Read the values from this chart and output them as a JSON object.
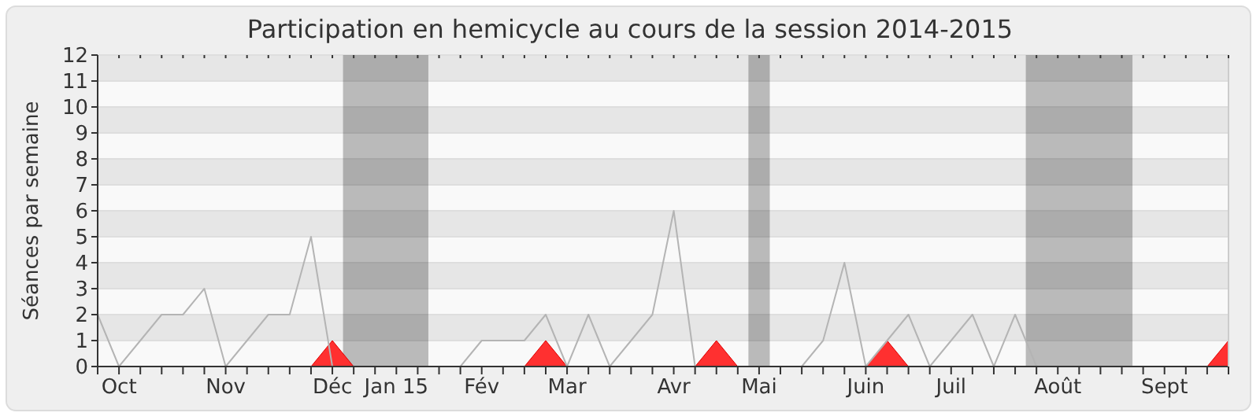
{
  "chart_data": {
    "type": "line",
    "title": "Participation en hemicycle au cours de la session 2014-2015",
    "ylabel": "Séances par semaine",
    "series": [
      {
        "type": "scatter",
        "marker": "triangle",
        "color": "#ff3030",
        "x": [
          "2014-12-15",
          "2015-02-23",
          "2015-04-20",
          "2015-06-15",
          "2015-10-05"
        ],
        "values": [
          0.5,
          0.5,
          0.5,
          0.5,
          0.5
        ]
      },
      {
        "color": "#b4b4b4",
        "x": [
          "2014-09-29",
          "2014-10-06",
          "2014-10-13",
          "2014-10-20",
          "2014-10-27",
          "2014-11-03",
          "2014-11-10",
          "2014-11-17",
          "2014-11-24",
          "2014-12-01",
          "2014-12-08",
          "2014-12-15",
          "2014-12-22",
          "2014-12-29",
          "2015-01-05",
          "2015-01-12",
          "2015-01-19",
          "2015-01-26",
          "2015-02-02",
          "2015-02-09",
          "2015-02-16",
          "2015-02-23",
          "2015-03-02",
          "2015-03-09",
          "2015-03-16",
          "2015-03-23",
          "2015-03-30",
          "2015-04-06",
          "2015-04-13",
          "2015-04-20",
          "2015-04-27",
          "2015-05-04",
          "2015-05-11",
          "2015-05-18",
          "2015-05-25",
          "2015-06-01",
          "2015-06-08",
          "2015-06-15",
          "2015-06-22",
          "2015-06-29",
          "2015-07-06",
          "2015-07-13",
          "2015-07-20",
          "2015-07-27",
          "2015-08-03"
        ],
        "values": [
          2,
          0,
          1,
          2,
          2,
          3,
          0,
          1,
          2,
          2,
          5,
          0,
          null,
          null,
          null,
          null,
          null,
          0,
          1,
          1,
          1,
          2,
          0,
          2,
          0,
          1,
          2,
          6,
          0,
          0,
          0,
          null,
          0,
          0,
          1,
          4,
          0,
          1,
          2,
          0,
          1,
          2,
          0,
          2,
          0
        ]
      }
    ],
    "bands": [
      {
        "axis": "x",
        "from": "2014-12-18T12:00",
        "to": "2015-01-15T12:00",
        "color": "#b4b4b4"
      },
      {
        "axis": "x",
        "from": "2015-04-30T12:00",
        "to": "2015-05-07T12:00",
        "color": "#b4b4b4"
      },
      {
        "axis": "x",
        "from": "2015-07-30T12:00",
        "to": "2015-09-03T12:00",
        "color": "#b4b4b4"
      }
    ],
    "xlim": [
      "2014-09-29",
      "2015-10-05"
    ],
    "xticks": [
      {
        "value": "2014-09-29",
        "label": null
      },
      {
        "value": "2014-10-06",
        "label": "Oct"
      },
      {
        "value": "2014-10-13",
        "label": null
      },
      {
        "value": "2014-10-20",
        "label": null
      },
      {
        "value": "2014-10-27",
        "label": null
      },
      {
        "value": "2014-11-03",
        "label": null
      },
      {
        "value": "2014-11-10",
        "label": "Nov"
      },
      {
        "value": "2014-11-17",
        "label": null
      },
      {
        "value": "2014-11-24",
        "label": null
      },
      {
        "value": "2014-12-01",
        "label": null
      },
      {
        "value": "2014-12-08",
        "label": null
      },
      {
        "value": "2014-12-15",
        "label": "Déc"
      },
      {
        "value": "2014-12-22",
        "label": null
      },
      {
        "value": "2014-12-29",
        "label": null
      },
      {
        "value": "2015-01-05",
        "label": "Jan 15"
      },
      {
        "value": "2015-01-12",
        "label": null
      },
      {
        "value": "2015-01-19",
        "label": null
      },
      {
        "value": "2015-01-26",
        "label": null
      },
      {
        "value": "2015-02-02",
        "label": "Fév"
      },
      {
        "value": "2015-02-09",
        "label": null
      },
      {
        "value": "2015-02-16",
        "label": null
      },
      {
        "value": "2015-02-23",
        "label": null
      },
      {
        "value": "2015-03-02",
        "label": "Mar"
      },
      {
        "value": "2015-03-09",
        "label": null
      },
      {
        "value": "2015-03-16",
        "label": null
      },
      {
        "value": "2015-03-23",
        "label": null
      },
      {
        "value": "2015-03-30",
        "label": null
      },
      {
        "value": "2015-04-06",
        "label": "Avr"
      },
      {
        "value": "2015-04-13",
        "label": null
      },
      {
        "value": "2015-04-20",
        "label": null
      },
      {
        "value": "2015-04-27",
        "label": null
      },
      {
        "value": "2015-05-04",
        "label": "Mai"
      },
      {
        "value": "2015-05-11",
        "label": null
      },
      {
        "value": "2015-05-18",
        "label": null
      },
      {
        "value": "2015-05-25",
        "label": null
      },
      {
        "value": "2015-06-01",
        "label": null
      },
      {
        "value": "2015-06-08",
        "label": "Juin"
      },
      {
        "value": "2015-06-15",
        "label": null
      },
      {
        "value": "2015-06-22",
        "label": null
      },
      {
        "value": "2015-06-29",
        "label": null
      },
      {
        "value": "2015-07-06",
        "label": "Juil"
      },
      {
        "value": "2015-07-13",
        "label": null
      },
      {
        "value": "2015-07-20",
        "label": null
      },
      {
        "value": "2015-07-27",
        "label": null
      },
      {
        "value": "2015-08-03",
        "label": null
      },
      {
        "value": "2015-08-10",
        "label": "Août"
      },
      {
        "value": "2015-08-17",
        "label": null
      },
      {
        "value": "2015-08-24",
        "label": null
      },
      {
        "value": "2015-08-31",
        "label": null
      },
      {
        "value": "2015-09-07",
        "label": null
      },
      {
        "value": "2015-09-14",
        "label": "Sept"
      },
      {
        "value": "2015-09-21",
        "label": null
      },
      {
        "value": "2015-09-28",
        "label": null
      },
      {
        "value": "2015-10-05",
        "label": null
      }
    ],
    "ylim": [
      0,
      12
    ],
    "yticks": [
      0,
      1,
      2,
      3,
      4,
      5,
      6,
      7,
      8,
      9,
      10,
      11,
      12
    ],
    "grid": "y"
  }
}
